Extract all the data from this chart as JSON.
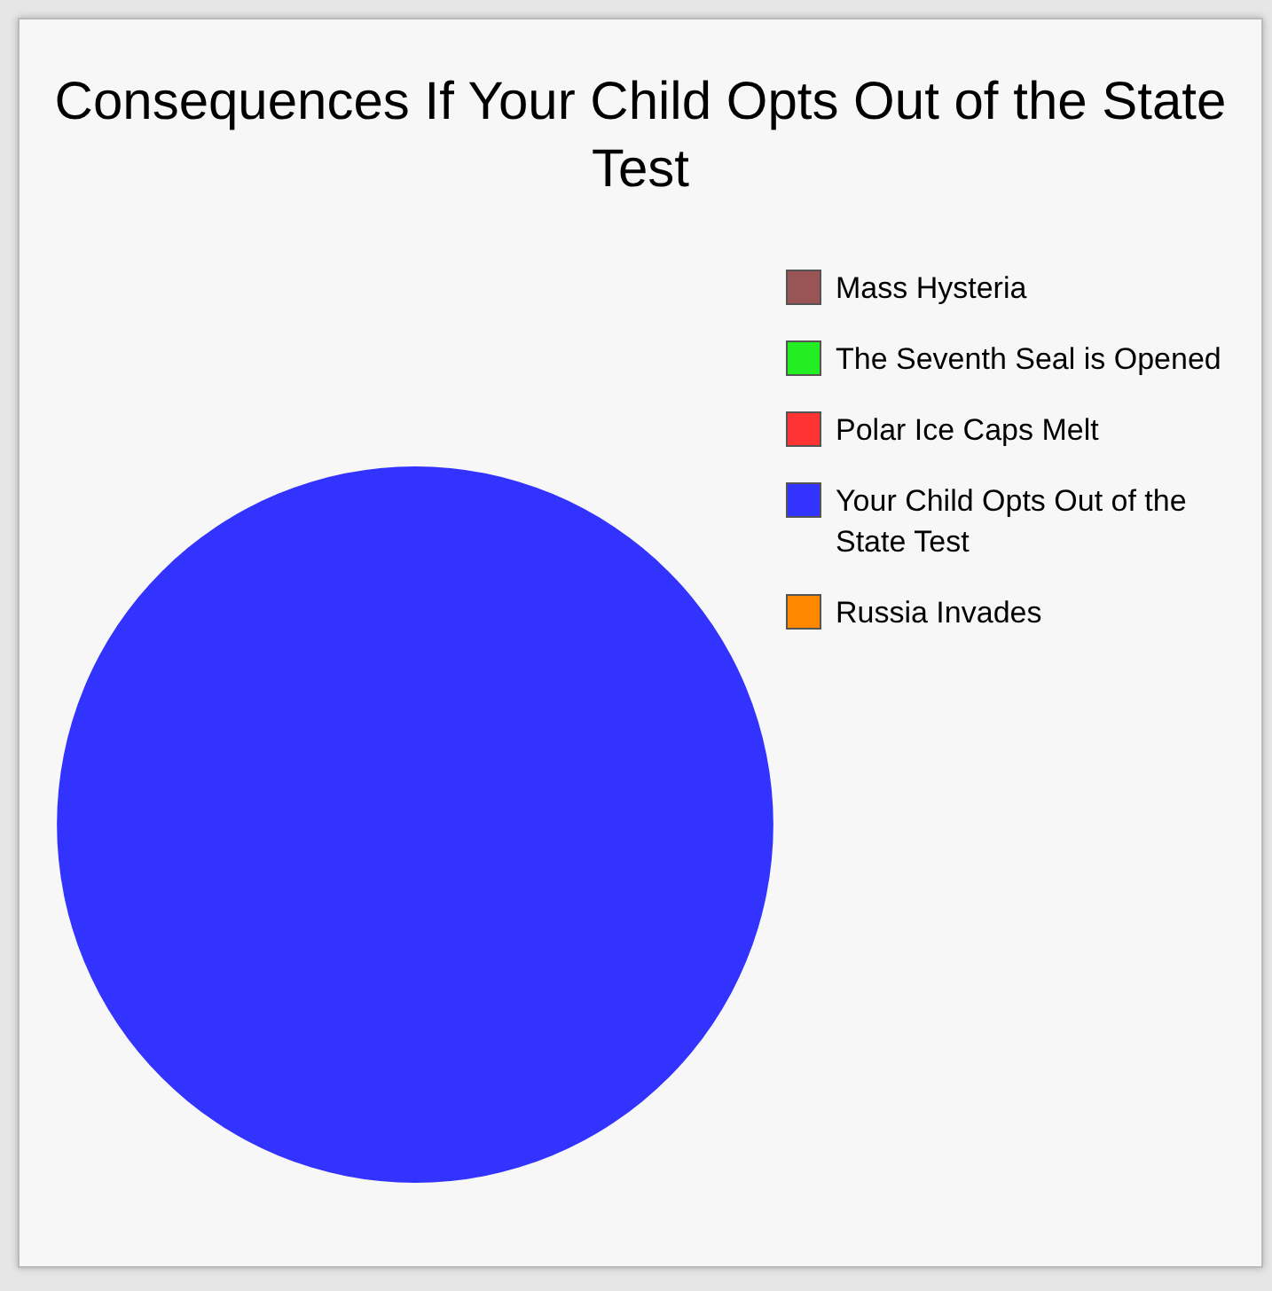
{
  "chart_data": {
    "type": "pie",
    "title": "Consequences If Your Child Opts Out of the State Test",
    "categories": [
      "Mass Hysteria",
      "The Seventh Seal is Opened",
      "Polar Ice Caps Melt",
      "Your Child Opts Out of the State Test",
      "Russia Invades"
    ],
    "values": [
      0,
      0,
      0,
      100,
      0
    ],
    "colors": [
      "#995555",
      "#22ee22",
      "#ff3333",
      "#3333ff",
      "#ff8800"
    ],
    "legend": "top right"
  }
}
